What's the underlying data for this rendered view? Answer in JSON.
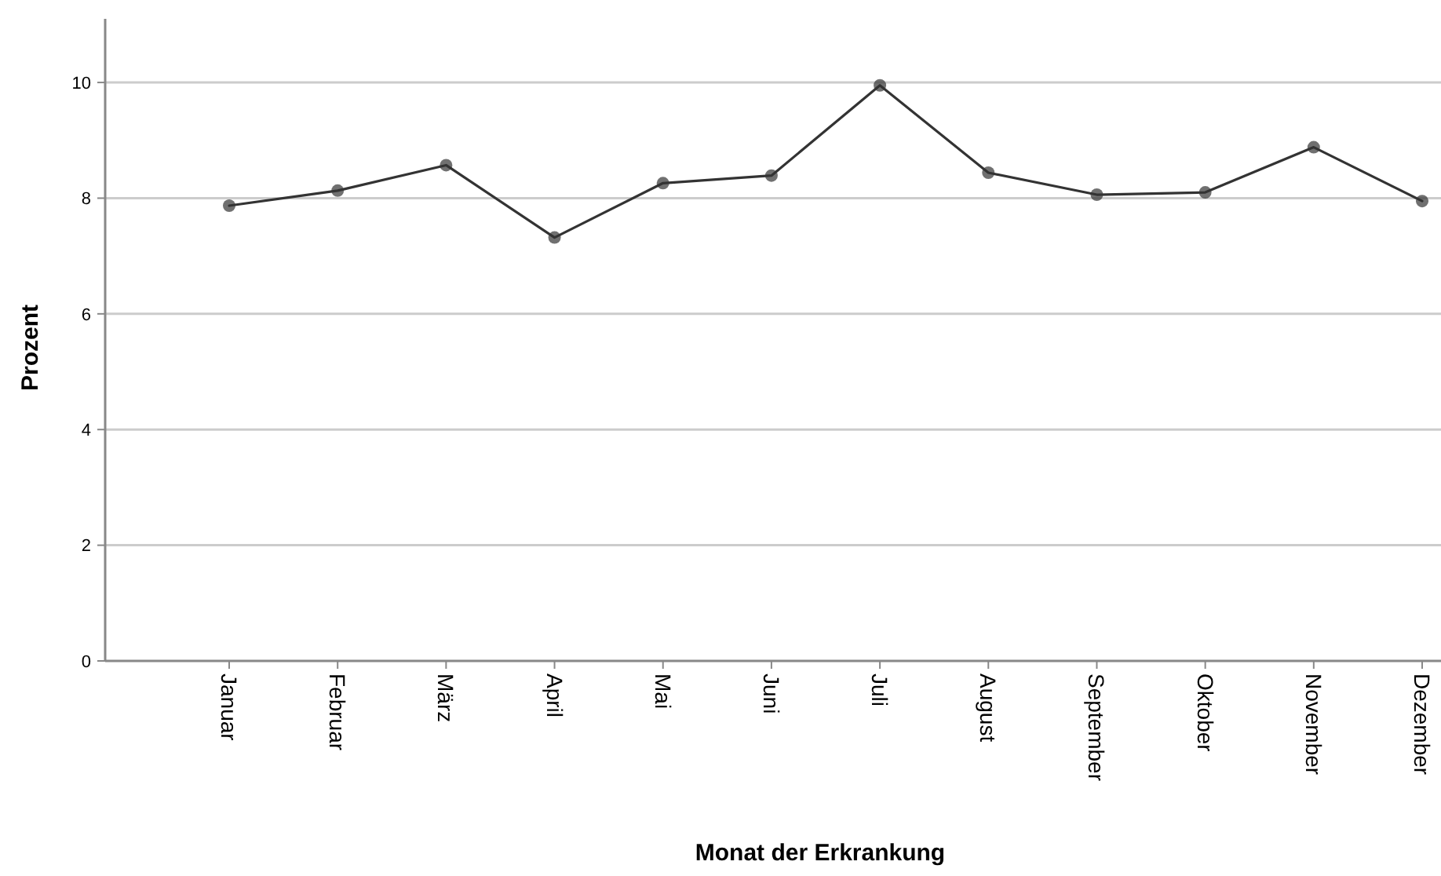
{
  "chart_data": {
    "type": "line",
    "xlabel": "Monat der Erkrankung",
    "ylabel": "Prozent",
    "categories": [
      "Januar",
      "Februar",
      "März",
      "April",
      "Mai",
      "Juni",
      "Juli",
      "August",
      "September",
      "Oktober",
      "November",
      "Dezember"
    ],
    "series": [
      {
        "color": "#333333",
        "values": [
          7.87,
          8.13,
          8.57,
          7.32,
          8.26,
          8.39,
          9.95,
          8.44,
          8.06,
          8.1,
          8.88,
          7.95
        ]
      }
    ],
    "ylim": [
      0,
      11.1
    ],
    "yticks": [
      0,
      2,
      4,
      6,
      8,
      10
    ],
    "grid": "y",
    "marker": "circle",
    "line_style": "solid"
  }
}
